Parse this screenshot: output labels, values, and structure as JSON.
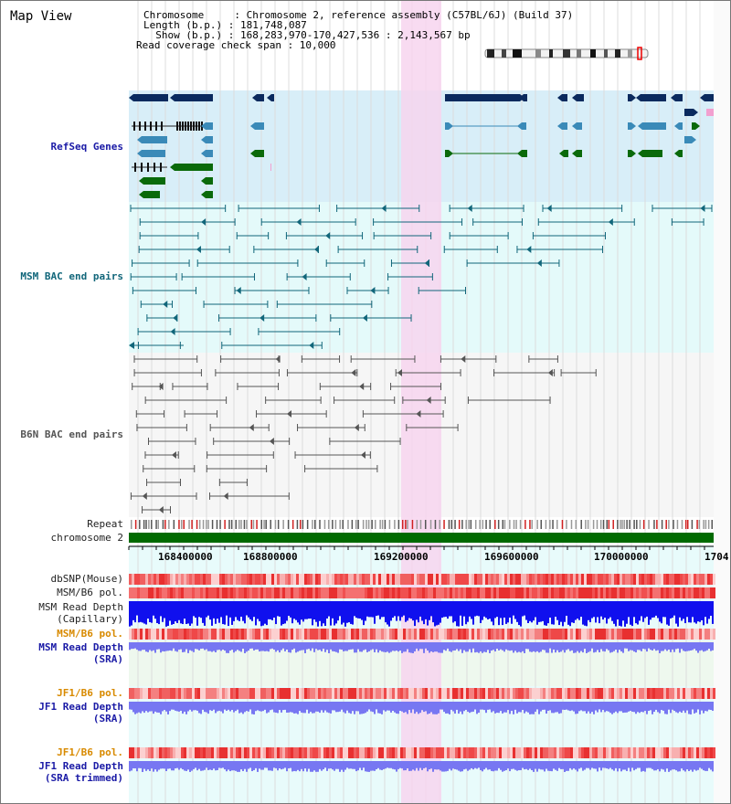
{
  "header": {
    "title": "Map View",
    "chromosome_line": "Chromosome     : Chromosome 2, reference assembly (C57BL/6J) (Build 37)",
    "length_line": "Length (b.p.) : 181,748,087",
    "show_line": "  Show (b.p.) : 168,283,970-170,427,536 : 2,143,567 bp",
    "coverage_line": "Read coverage check span : 10,000"
  },
  "tracks": {
    "refseq": "RefSeq Genes",
    "msm_bac": "MSM BAC end pairs",
    "b6n_bac": "B6N BAC end pairs",
    "repeat": "Repeat",
    "chromosome": "chromosome 2",
    "dbsnp": "dbSNP(Mouse)",
    "msm_b6_pol": "MSM/B6 pol.",
    "msm_depth_cap_1": "MSM Read Depth",
    "msm_depth_cap_2": "(Capillary)",
    "msm_b6_pol_2": "MSM/B6 pol.",
    "msm_depth_sra_1": "MSM Read Depth",
    "msm_depth_sra_2": "(SRA)",
    "jf1_pol": "JF1/B6 pol.",
    "jf1_depth_1": "JF1 Read Depth",
    "jf1_depth_2": "(SRA)",
    "jf1_pol_2": "JF1/B6 pol.",
    "jf1_trim_1": "JF1 Read Depth",
    "jf1_trim_2": "(SRA trimmed)"
  },
  "ruler": {
    "ticks": [
      "168400000",
      "168800000",
      "169200000",
      "169600000",
      "170000000",
      "1704"
    ]
  },
  "colors": {
    "refseq_bg": "#d8eef8",
    "msm_bg": "#e4fafa",
    "highlight": "#f7d5ee",
    "chromosome": "#006a00",
    "gene_dark": "#0a2a5e",
    "gene_light": "#3a8ab8",
    "gene_green": "#0a6a0a",
    "bac_teal": "#11667a",
    "bac_gray": "#555555",
    "depth_blue": "#1010ee",
    "depth_light": "#7777f2"
  }
}
